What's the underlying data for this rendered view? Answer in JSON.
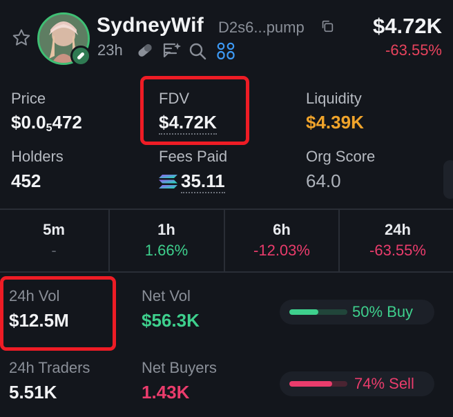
{
  "header": {
    "token_name": "SydneyWif",
    "address": "D2s6...pump",
    "age": "23h",
    "market_cap": "$4.72K",
    "change_24h": "-63.55%",
    "icons": [
      "star-icon",
      "copy-icon",
      "pill-icon",
      "sparkle-chat-icon",
      "search-icon",
      "group-icon"
    ]
  },
  "stats": {
    "price_label": "Price",
    "price_main": "$0.0",
    "price_sub": "5",
    "price_rest": "472",
    "fdv_label": "FDV",
    "fdv_value": "$4.72K",
    "liquidity_label": "Liquidity",
    "liquidity_value": "$4.39K",
    "holders_label": "Holders",
    "holders_value": "452",
    "fees_label": "Fees Paid",
    "fees_value": "35.11",
    "org_label": "Org Score",
    "org_value": "64.0"
  },
  "timeframes": [
    {
      "label": "5m",
      "value": "-"
    },
    {
      "label": "1h",
      "value": "1.66%"
    },
    {
      "label": "6h",
      "value": "-12.03%"
    },
    {
      "label": "24h",
      "value": "-63.55%"
    }
  ],
  "volume": {
    "vol_label": "24h Vol",
    "vol_value": "$12.5M",
    "net_vol_label": "Net Vol",
    "net_vol_value": "$56.3K",
    "buy_text": "50% Buy",
    "buy_fraction": 0.5,
    "traders_label": "24h Traders",
    "traders_value": "5.51K",
    "net_buyers_label": "Net Buyers",
    "net_buyers_value": "1.43K",
    "sell_text": "74% Sell",
    "sell_fraction": 0.74
  },
  "colors": {
    "positive": "#3ed08d",
    "negative": "#ea3c6c",
    "liquidity": "#f0a42b",
    "highlight_box": "#ee1c25"
  }
}
